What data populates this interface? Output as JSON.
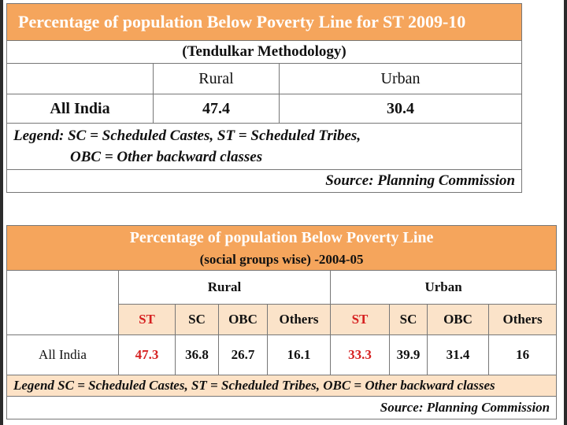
{
  "table1": {
    "title": "Percentage of population Below Poverty Line for ST  2009-10",
    "subtitle": "(Tendulkar Methodology)",
    "headers": [
      "Rural",
      "Urban"
    ],
    "row": {
      "label": "All India",
      "rural": "47.4",
      "urban": "30.4"
    },
    "legend_line1": "Legend:  SC = Scheduled Castes,  ST = Scheduled Tribes,",
    "legend_line2": "OBC = Other backward classes",
    "source": "Source:  Planning Commission"
  },
  "table2": {
    "title": "Percentage of population Below Poverty Line",
    "subtitle": "(social groups wise) -2004-05",
    "groups": [
      "Rural",
      "Urban"
    ],
    "columns": [
      "ST",
      "SC",
      "OBC",
      "Others",
      "ST",
      "SC",
      "OBC",
      "Others"
    ],
    "row": {
      "label": "All India",
      "values": [
        "47.3",
        "36.8",
        "26.7",
        "16.1",
        "33.3",
        "39.9",
        "31.4",
        "16"
      ]
    },
    "legend": "Legend SC = Scheduled Castes,  ST = Scheduled Tribes,  OBC = Other backward classes",
    "source": "Source:  Planning Commission"
  },
  "colors": {
    "header_orange": "#f5a55c",
    "header_light": "#fbe3c9",
    "st_red": "#d62020"
  }
}
